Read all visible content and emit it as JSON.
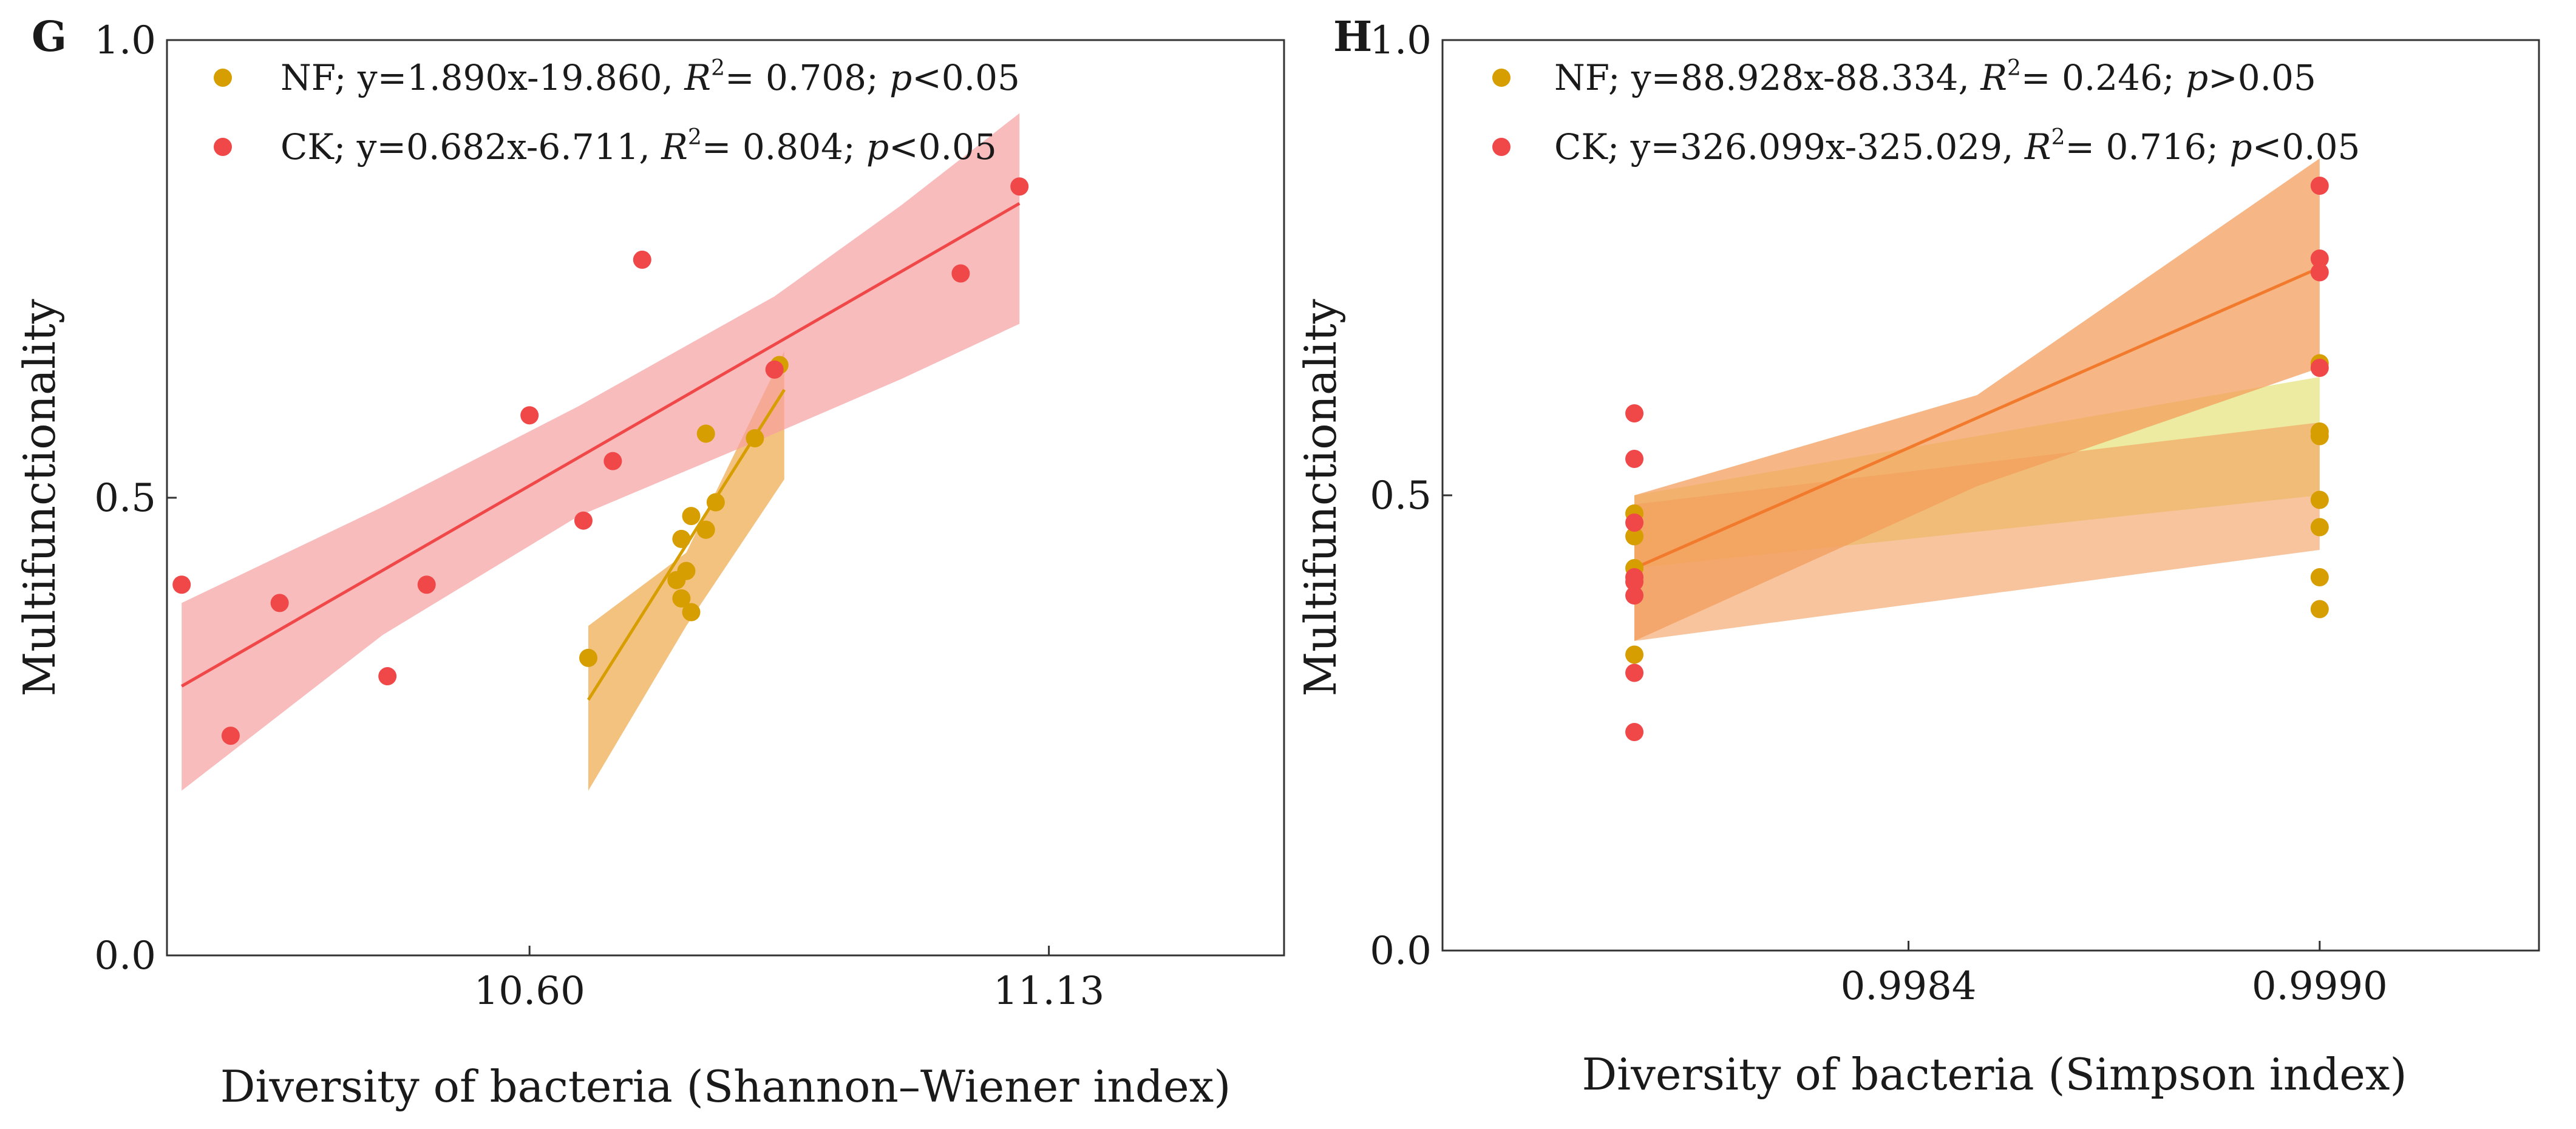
{
  "chart_data": [
    {
      "type": "scatter",
      "panel": "G",
      "xlabel": "Diversity of bacteria (Shannon–Wiener index)",
      "ylabel": "Multifunctionality",
      "xlim": [
        10.23,
        11.37
      ],
      "ylim": [
        0,
        1.0
      ],
      "xticks": [
        10.6,
        11.13
      ],
      "xtick_labels": [
        "10.60",
        "11.13"
      ],
      "yticks": [
        0.0,
        0.5,
        1.0
      ],
      "ytick_labels": [
        "0.0",
        "0.5",
        "1.0"
      ],
      "legend_position": "top-left",
      "series": [
        {
          "name": "NF",
          "color": "#d69e00",
          "band_color": "#f0a848",
          "legend": {
            "prefix": "NF; y=1.890x-19.860, ",
            "r": "R",
            "sup": "2",
            "mid": "= 0.708; ",
            "p": "p",
            "suffix": "<0.05"
          },
          "points": [
            [
              10.66,
              0.325
            ],
            [
              10.75,
              0.41
            ],
            [
              10.755,
              0.39
            ],
            [
              10.765,
              0.375
            ],
            [
              10.76,
              0.42
            ],
            [
              10.755,
              0.455
            ],
            [
              10.765,
              0.48
            ],
            [
              10.78,
              0.465
            ],
            [
              10.79,
              0.495
            ],
            [
              10.78,
              0.57
            ],
            [
              10.83,
              0.565
            ],
            [
              10.855,
              0.645
            ]
          ],
          "fit_x": [
            10.66,
            10.86
          ],
          "band_upper": [
            [
              10.66,
              0.36
            ],
            [
              10.76,
              0.44
            ],
            [
              10.86,
              0.66
            ]
          ],
          "band_lower": [
            [
              10.66,
              0.18
            ],
            [
              10.76,
              0.36
            ],
            [
              10.86,
              0.52
            ]
          ]
        },
        {
          "name": "CK",
          "color": "#f04848",
          "band_color": "#f7a0a0",
          "legend": {
            "prefix": "CK; y=0.682x-6.711, ",
            "r": "R",
            "sup": "2",
            "mid": "= 0.804; ",
            "p": "p",
            "suffix": "<0.05"
          },
          "points": [
            [
              10.245,
              0.405
            ],
            [
              10.295,
              0.24
            ],
            [
              10.345,
              0.385
            ],
            [
              10.455,
              0.305
            ],
            [
              10.495,
              0.405
            ],
            [
              10.6,
              0.59
            ],
            [
              10.655,
              0.475
            ],
            [
              10.685,
              0.54
            ],
            [
              10.715,
              0.76
            ],
            [
              10.85,
              0.64
            ],
            [
              11.04,
              0.745
            ],
            [
              11.1,
              0.84
            ]
          ],
          "fit_x": [
            10.245,
            11.1
          ],
          "band_upper": [
            [
              10.245,
              0.385
            ],
            [
              10.45,
              0.49
            ],
            [
              10.65,
              0.6
            ],
            [
              10.85,
              0.72
            ],
            [
              10.98,
              0.82
            ],
            [
              11.1,
              0.92
            ]
          ],
          "band_lower": [
            [
              10.245,
              0.18
            ],
            [
              10.45,
              0.35
            ],
            [
              10.65,
              0.48
            ],
            [
              10.85,
              0.57
            ],
            [
              10.98,
              0.63
            ],
            [
              11.1,
              0.69
            ]
          ]
        }
      ]
    },
    {
      "type": "scatter",
      "panel": "H",
      "xlabel": "Diversity of bacteria (Simpson index)",
      "ylabel": "Multifunctionality",
      "xlim": [
        0.99772,
        0.99932
      ],
      "ylim": [
        0,
        1.0
      ],
      "xticks": [
        0.9984,
        0.999
      ],
      "xtick_labels": [
        "0.9984",
        "0.9990"
      ],
      "yticks": [
        0.0,
        0.5,
        1.0
      ],
      "ytick_labels": [
        "0.0",
        "0.5",
        "1.0"
      ],
      "legend_position": "top-left",
      "series": [
        {
          "name": "NF",
          "color": "#d69e00",
          "band_color": "#e7e482",
          "legend": {
            "prefix": "NF; y=88.928x-88.334, ",
            "r": "R",
            "sup": "2",
            "mid": "= 0.246; ",
            "p": "p",
            "suffix": ">0.05"
          },
          "points": [
            [
              0.998,
              0.325
            ],
            [
              0.998,
              0.42
            ],
            [
              0.998,
              0.455
            ],
            [
              0.998,
              0.48
            ],
            [
              0.999,
              0.375
            ],
            [
              0.999,
              0.41
            ],
            [
              0.999,
              0.465
            ],
            [
              0.999,
              0.495
            ],
            [
              0.999,
              0.565
            ],
            [
              0.999,
              0.57
            ],
            [
              0.999,
              0.645
            ]
          ],
          "fit_x": [
            0.998,
            0.999
          ],
          "band_upper": [
            [
              0.998,
              0.5
            ],
            [
              0.999,
              0.63
            ]
          ],
          "band_lower": [
            [
              0.998,
              0.42
            ],
            [
              0.999,
              0.5
            ]
          ]
        },
        {
          "name": "CK",
          "color": "#f04848",
          "band_color": "#f39d5c",
          "legend": {
            "prefix": "CK; y=326.099x-325.029, ",
            "r": "R",
            "sup": "2",
            "mid": "= 0.716; ",
            "p": "p",
            "suffix": "<0.05"
          },
          "points": [
            [
              0.998,
              0.24
            ],
            [
              0.998,
              0.305
            ],
            [
              0.998,
              0.39
            ],
            [
              0.998,
              0.405
            ],
            [
              0.998,
              0.41
            ],
            [
              0.998,
              0.47
            ],
            [
              0.998,
              0.54
            ],
            [
              0.998,
              0.59
            ],
            [
              0.999,
              0.64
            ],
            [
              0.999,
              0.745
            ],
            [
              0.999,
              0.76
            ],
            [
              0.999,
              0.84
            ]
          ],
          "fit_x": [
            0.998,
            0.999
          ],
          "fit_y": [
            0.42,
            0.75
          ],
          "band_upper": [
            [
              0.998,
              0.5
            ],
            [
              0.9985,
              0.61
            ],
            [
              0.999,
              0.87
            ]
          ],
          "band_lower": [
            [
              0.998,
              0.34
            ],
            [
              0.9985,
              0.51
            ],
            [
              0.999,
              0.64
            ]
          ],
          "band2_upper": [
            [
              0.998,
              0.49
            ],
            [
              0.999,
              0.58
            ]
          ],
          "band2_lower": [
            [
              0.998,
              0.34
            ],
            [
              0.999,
              0.44
            ]
          ]
        }
      ]
    }
  ]
}
